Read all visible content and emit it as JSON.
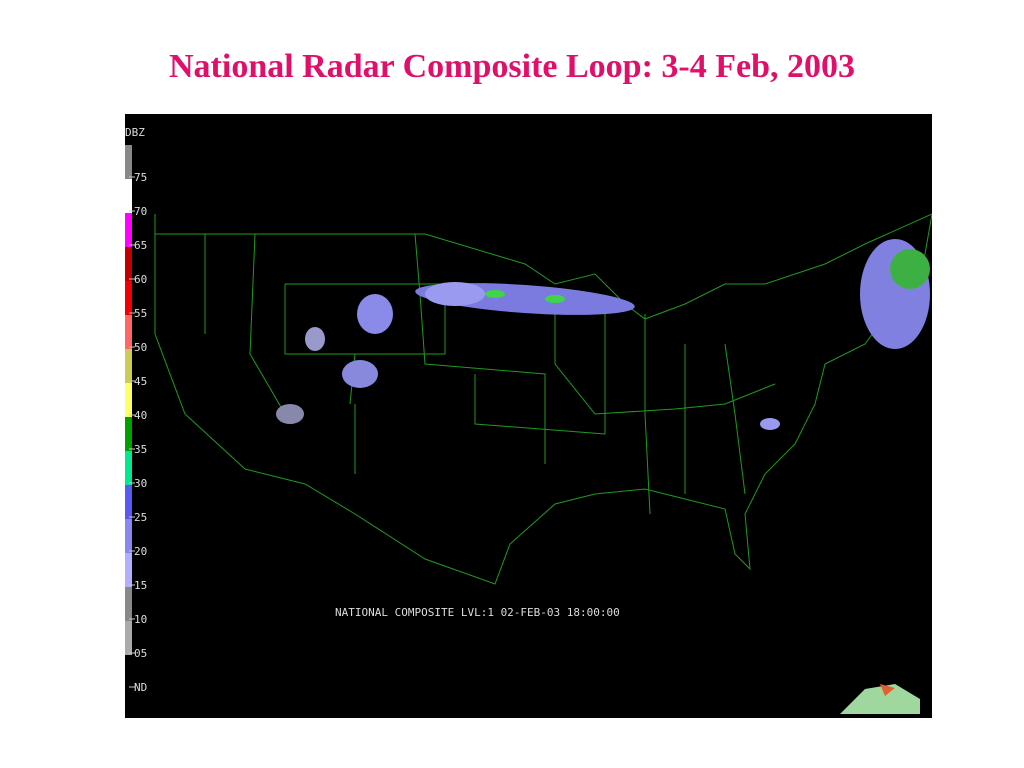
{
  "header": {
    "title": "National Radar Composite Loop: 3-4 Feb, 2003"
  },
  "legend": {
    "unit": "DBZ",
    "levels": [
      "75",
      "70",
      "65",
      "60",
      "55",
      "50",
      "45",
      "40",
      "35",
      "30",
      "25",
      "20",
      "15",
      "10",
      "05",
      "ND"
    ]
  },
  "map": {
    "caption": "NATIONAL COMPOSITE  LVL:1 02-FEB-03 18:00:00"
  }
}
